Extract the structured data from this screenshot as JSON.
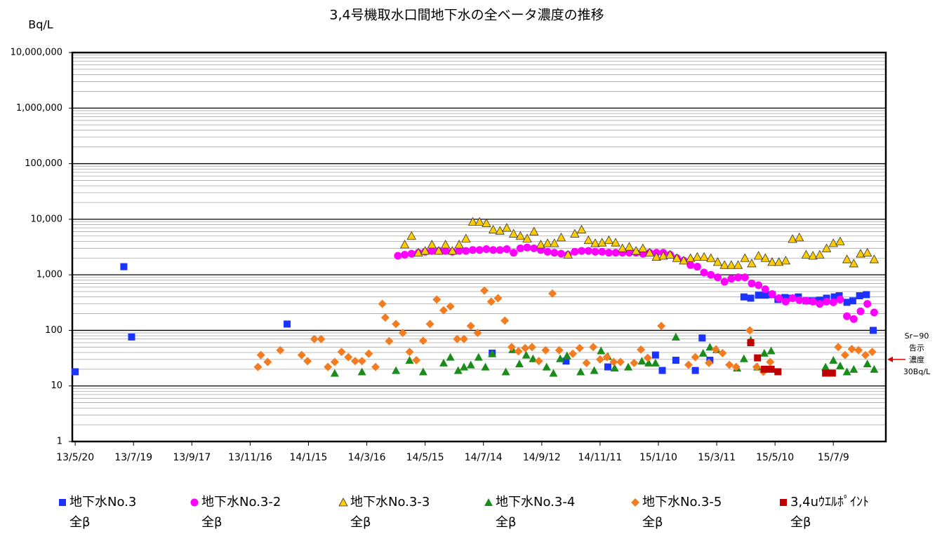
{
  "chart_data": {
    "type": "scatter",
    "title": "3,4号機取水口間地下水の全ベータ濃度の推移",
    "y_label": "Bq/L",
    "log_scale": true,
    "grid": true,
    "minor_grid": true,
    "ylim": [
      1,
      10000000
    ],
    "yticks": [
      1,
      10,
      100,
      {
        "value": 1000,
        "label": "1,000"
      },
      {
        "value": 10000,
        "label": "10,000"
      },
      {
        "value": 100000,
        "label": "100,000"
      },
      {
        "value": 1000000,
        "label": "1,000,000"
      },
      {
        "value": 10000000,
        "label": "10,000,000"
      }
    ],
    "xlim": [
      "2013-05-17",
      "2015-09-01"
    ],
    "xticks": [
      {
        "value": "2013-05-20",
        "label": "13/5/20"
      },
      {
        "value": "2013-07-19",
        "label": "13/7/19"
      },
      {
        "value": "2013-09-17",
        "label": "13/9/17"
      },
      {
        "value": "2013-11-16",
        "label": "13/11/16"
      },
      {
        "value": "2014-01-15",
        "label": "14/1/15"
      },
      {
        "value": "2014-03-16",
        "label": "14/3/16"
      },
      {
        "value": "2014-05-15",
        "label": "14/5/15"
      },
      {
        "value": "2014-07-14",
        "label": "14/7/14"
      },
      {
        "value": "2014-09-12",
        "label": "14/9/12"
      },
      {
        "value": "2014-11-11",
        "label": "14/11/11"
      },
      {
        "value": "2015-01-10",
        "label": "15/1/10"
      },
      {
        "value": "2015-03-11",
        "label": "15/3/11"
      },
      {
        "value": "2015-05-10",
        "label": "15/5/10"
      },
      {
        "value": "2015-07-09",
        "label": "15/7/9"
      }
    ],
    "annotation": {
      "lines": [
        "Sr−90",
        "告示",
        "濃度",
        "30Bq/L"
      ],
      "value": 30,
      "color": "#e00000"
    },
    "series": [
      {
        "name": "地下水No.3\n全β",
        "color": "#1a33ff",
        "marker": "square",
        "x": [
          "2013-05-20",
          "2013-07-09",
          "2013-07-17",
          "2013-12-24",
          "2014-07-23",
          "2014-10-07",
          "2014-11-19",
          "2015-01-07",
          "2015-01-14",
          "2015-01-28",
          "2015-02-17",
          "2015-02-24",
          "2015-03-04",
          "2015-04-08",
          "2015-04-15",
          "2015-04-23",
          "2015-04-30",
          "2015-05-07",
          "2015-05-13",
          "2015-05-20",
          "2015-05-27",
          "2015-06-03",
          "2015-06-11",
          "2015-06-18",
          "2015-06-25",
          "2015-07-02",
          "2015-07-10",
          "2015-07-15",
          "2015-07-23",
          "2015-07-29",
          "2015-08-05",
          "2015-08-12",
          "2015-08-19"
        ],
        "values": [
          18,
          1400,
          76,
          130,
          39,
          28,
          22,
          36,
          19,
          29,
          19,
          73,
          29,
          400,
          380,
          430,
          430,
          440,
          360,
          390,
          380,
          400,
          340,
          340,
          350,
          380,
          400,
          420,
          320,
          340,
          420,
          440,
          100
        ]
      },
      {
        "name": "地下水No.3-2\n全β",
        "color": "#ff00ff",
        "marker": "circle",
        "x": [
          "2014-04-17",
          "2014-04-24",
          "2014-05-01",
          "2014-05-08",
          "2014-05-15",
          "2014-05-22",
          "2014-05-29",
          "2014-06-05",
          "2014-06-12",
          "2014-06-19",
          "2014-06-26",
          "2014-07-03",
          "2014-07-10",
          "2014-07-17",
          "2014-07-24",
          "2014-07-31",
          "2014-08-07",
          "2014-08-14",
          "2014-08-21",
          "2014-08-28",
          "2014-09-04",
          "2014-09-11",
          "2014-09-18",
          "2014-09-25",
          "2014-10-02",
          "2014-10-09",
          "2014-10-16",
          "2014-10-23",
          "2014-10-30",
          "2014-11-06",
          "2014-11-13",
          "2014-11-20",
          "2014-11-27",
          "2014-12-04",
          "2014-12-11",
          "2014-12-18",
          "2014-12-25",
          "2015-01-01",
          "2015-01-08",
          "2015-01-15",
          "2015-01-22",
          "2015-01-29",
          "2015-02-05",
          "2015-02-12",
          "2015-02-19",
          "2015-02-26",
          "2015-03-05",
          "2015-03-12",
          "2015-03-19",
          "2015-03-26",
          "2015-04-02",
          "2015-04-09",
          "2015-04-16",
          "2015-04-23",
          "2015-04-30",
          "2015-05-07",
          "2015-05-14",
          "2015-05-21",
          "2015-05-28",
          "2015-06-04",
          "2015-06-11",
          "2015-06-18",
          "2015-06-25",
          "2015-07-02",
          "2015-07-09",
          "2015-07-16",
          "2015-07-23",
          "2015-07-30",
          "2015-08-06",
          "2015-08-13",
          "2015-08-20"
        ],
        "values": [
          2200,
          2300,
          2400,
          2500,
          2600,
          2700,
          2700,
          2700,
          2600,
          2700,
          2700,
          2800,
          2800,
          2900,
          2800,
          2800,
          2900,
          2500,
          3000,
          3100,
          3000,
          2800,
          2600,
          2500,
          2400,
          2300,
          2600,
          2700,
          2700,
          2600,
          2600,
          2500,
          2500,
          2500,
          2500,
          2500,
          2400,
          2500,
          2500,
          2500,
          2300,
          2000,
          1800,
          1500,
          1400,
          1100,
          1000,
          900,
          750,
          850,
          900,
          900,
          700,
          650,
          550,
          450,
          380,
          330,
          380,
          350,
          340,
          330,
          300,
          330,
          320,
          360,
          180,
          160,
          220,
          300,
          210
        ]
      },
      {
        "name": "地下水No.3-3\n全β",
        "color": "#ffcc00",
        "marker": "triangle",
        "x": [
          "2014-04-24",
          "2014-05-01",
          "2014-05-08",
          "2014-05-15",
          "2014-05-22",
          "2014-05-29",
          "2014-06-05",
          "2014-06-12",
          "2014-06-19",
          "2014-06-26",
          "2014-07-03",
          "2014-07-10",
          "2014-07-17",
          "2014-07-24",
          "2014-07-31",
          "2014-08-07",
          "2014-08-14",
          "2014-08-21",
          "2014-08-28",
          "2014-09-04",
          "2014-09-11",
          "2014-09-18",
          "2014-09-25",
          "2014-10-02",
          "2014-10-09",
          "2014-10-16",
          "2014-10-23",
          "2014-10-30",
          "2014-11-06",
          "2014-11-13",
          "2014-11-20",
          "2014-11-27",
          "2014-12-04",
          "2014-12-11",
          "2014-12-18",
          "2014-12-25",
          "2015-01-01",
          "2015-01-08",
          "2015-01-15",
          "2015-01-22",
          "2015-01-29",
          "2015-02-05",
          "2015-02-12",
          "2015-02-19",
          "2015-02-26",
          "2015-03-05",
          "2015-03-12",
          "2015-03-19",
          "2015-03-26",
          "2015-04-02",
          "2015-04-09",
          "2015-04-16",
          "2015-04-23",
          "2015-04-30",
          "2015-05-07",
          "2015-05-14",
          "2015-05-21",
          "2015-05-28",
          "2015-06-04",
          "2015-06-11",
          "2015-06-18",
          "2015-06-25",
          "2015-07-02",
          "2015-07-09",
          "2015-07-16",
          "2015-07-23",
          "2015-07-30",
          "2015-08-06",
          "2015-08-13",
          "2015-08-20"
        ],
        "values": [
          3500,
          5000,
          2500,
          2700,
          3500,
          2700,
          3500,
          2700,
          3500,
          4500,
          9000,
          9000,
          8500,
          6500,
          6200,
          7000,
          5500,
          5000,
          4500,
          6000,
          3500,
          3700,
          3700,
          4700,
          2300,
          5500,
          6500,
          4200,
          3700,
          3800,
          4200,
          3800,
          3000,
          3200,
          2700,
          3000,
          2500,
          2100,
          2200,
          2300,
          2000,
          1800,
          2000,
          2100,
          2100,
          2000,
          1700,
          1500,
          1500,
          1500,
          2000,
          1600,
          2200,
          2000,
          1700,
          1700,
          1800,
          4400,
          4700,
          2300,
          2200,
          2300,
          3000,
          3700,
          4000,
          1900,
          1600,
          2400,
          2500,
          1900
        ]
      },
      {
        "name": "地下水No.3-4\n全β",
        "color": "#1a8c1a",
        "marker": "triangle",
        "x": [
          "2014-02-11",
          "2014-03-11",
          "2014-04-15",
          "2014-04-29",
          "2014-05-13",
          "2014-06-03",
          "2014-06-10",
          "2014-06-18",
          "2014-06-24",
          "2014-07-01",
          "2014-07-09",
          "2014-07-16",
          "2014-07-23",
          "2014-08-06",
          "2014-08-13",
          "2014-08-20",
          "2014-08-27",
          "2014-09-03",
          "2014-09-17",
          "2014-09-24",
          "2014-10-01",
          "2014-10-08",
          "2014-10-22",
          "2014-11-05",
          "2014-11-12",
          "2014-11-19",
          "2014-11-26",
          "2014-12-10",
          "2014-12-24",
          "2014-12-31",
          "2015-01-07",
          "2015-01-28",
          "2015-02-25",
          "2015-03-04",
          "2015-03-11",
          "2015-04-01",
          "2015-04-08",
          "2015-04-15",
          "2015-04-22",
          "2015-04-29",
          "2015-05-06",
          "2015-07-01",
          "2015-07-09",
          "2015-07-16",
          "2015-07-23",
          "2015-07-30",
          "2015-08-13",
          "2015-08-20"
        ],
        "values": [
          17,
          18,
          19,
          29,
          18,
          26,
          33,
          19,
          22,
          24,
          33,
          22,
          38,
          18,
          45,
          25,
          36,
          31,
          22,
          17,
          31,
          35,
          18,
          19,
          43,
          34,
          21,
          22,
          28,
          26,
          26,
          76,
          39,
          50,
          45,
          21,
          31,
          67,
          22,
          39,
          43,
          22,
          29,
          23,
          18,
          20,
          25,
          20
        ]
      },
      {
        "name": "地下水No.3-5\n全β",
        "color": "#f47c20",
        "marker": "diamond",
        "x": [
          "2013-11-24",
          "2013-11-27",
          "2013-12-04",
          "2013-12-17",
          "2014-01-08",
          "2014-01-14",
          "2014-01-21",
          "2014-01-28",
          "2014-02-04",
          "2014-02-11",
          "2014-02-18",
          "2014-02-25",
          "2014-03-04",
          "2014-03-11",
          "2014-03-18",
          "2014-03-25",
          "2014-04-01",
          "2014-04-04",
          "2014-04-08",
          "2014-04-15",
          "2014-04-22",
          "2014-04-29",
          "2014-05-06",
          "2014-05-13",
          "2014-05-20",
          "2014-05-27",
          "2014-06-03",
          "2014-06-10",
          "2014-06-17",
          "2014-06-24",
          "2014-07-01",
          "2014-07-08",
          "2014-07-15",
          "2014-07-22",
          "2014-07-29",
          "2014-08-05",
          "2014-08-12",
          "2014-08-19",
          "2014-08-26",
          "2014-09-02",
          "2014-09-09",
          "2014-09-16",
          "2014-09-23",
          "2014-09-30",
          "2014-10-14",
          "2014-10-21",
          "2014-10-28",
          "2014-11-04",
          "2014-11-11",
          "2014-11-18",
          "2014-11-25",
          "2014-12-02",
          "2014-12-16",
          "2014-12-23",
          "2014-12-30",
          "2015-01-13",
          "2015-02-10",
          "2015-02-17",
          "2015-03-03",
          "2015-03-10",
          "2015-03-17",
          "2015-03-24",
          "2015-03-31",
          "2015-04-14",
          "2015-04-21",
          "2015-04-28",
          "2015-05-05",
          "2015-07-14",
          "2015-07-21",
          "2015-07-28",
          "2015-08-04",
          "2015-08-11",
          "2015-08-18"
        ],
        "values": [
          22,
          36,
          27,
          44,
          36,
          28,
          70,
          70,
          22,
          27,
          41,
          33,
          28,
          28,
          38,
          22,
          300,
          170,
          64,
          130,
          90,
          41,
          29,
          65,
          130,
          360,
          230,
          270,
          70,
          70,
          120,
          90,
          520,
          330,
          380,
          150,
          50,
          42,
          48,
          50,
          28,
          44,
          460,
          44,
          38,
          48,
          26,
          50,
          30,
          33,
          27,
          27,
          26,
          45,
          32,
          120,
          24,
          33,
          26,
          45,
          39,
          24,
          22,
          100,
          22,
          18,
          27,
          50,
          36,
          46,
          44,
          36,
          41
        ]
      },
      {
        "name": "3,4uｳｴﾙﾎﾟｲﾝﾄ\n全β",
        "color": "#c00000",
        "marker": "square",
        "x": [
          "2015-04-15",
          "2015-04-22",
          "2015-04-29",
          "2015-05-06",
          "2015-05-13",
          "2015-07-01",
          "2015-07-08"
        ],
        "values": [
          60,
          32,
          20,
          20,
          18,
          17,
          17
        ]
      }
    ]
  }
}
